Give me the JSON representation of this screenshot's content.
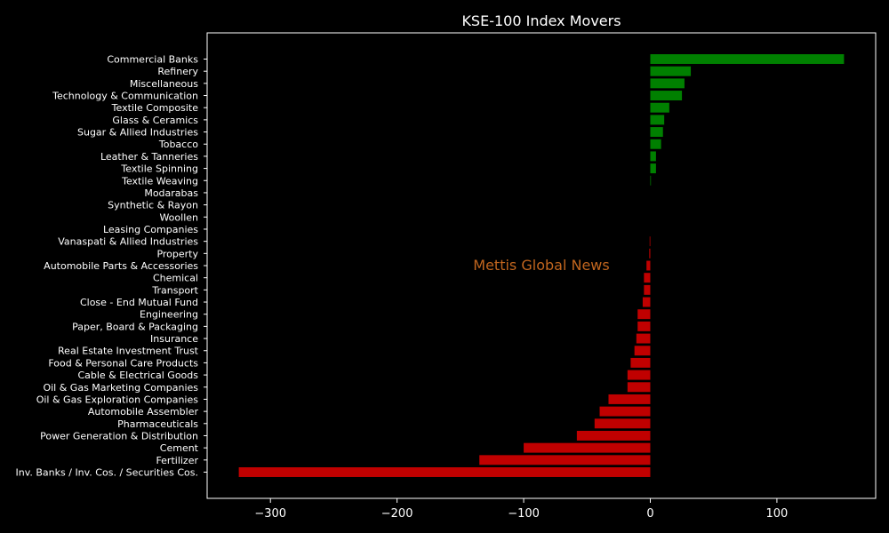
{
  "chart_data": {
    "type": "bar",
    "orientation": "horizontal",
    "title": "KSE-100 Index Movers",
    "watermark": "Mettis Global News",
    "xlim": [
      -350,
      178
    ],
    "xticks": [
      -300,
      -200,
      -100,
      0,
      100
    ],
    "xtick_labels": [
      "−300",
      "−200",
      "−100",
      "0",
      "100"
    ],
    "grid": false,
    "colors": {
      "positive": "#008000",
      "negative": "#c00000",
      "background": "#000000",
      "text": "#ffffff",
      "watermark": "#c0651e"
    },
    "categories": [
      "Commercial Banks",
      "Refinery",
      "Miscellaneous",
      "Technology & Communication",
      "Textile Composite",
      "Glass & Ceramics",
      "Sugar & Allied Industries",
      "Tobacco",
      "Leather & Tanneries",
      "Textile Spinning",
      "Textile Weaving",
      "Modarabas",
      "Synthetic & Rayon",
      "Woollen",
      "Leasing Companies",
      "Vanaspati & Allied Industries",
      "Property",
      "Automobile Parts & Accessories",
      "Chemical",
      "Transport",
      "Close - End Mutual Fund",
      "Engineering",
      "Paper, Board & Packaging",
      "Insurance",
      "Real Estate Investment Trust",
      "Food & Personal Care Products",
      "Cable & Electrical Goods",
      "Oil & Gas Marketing Companies",
      "Oil & Gas Exploration Companies",
      "Automobile Assembler",
      "Pharmaceuticals",
      "Power Generation & Distribution",
      "Cement",
      "Fertilizer",
      "Inv. Banks / Inv. Cos. / Securities Cos."
    ],
    "values": [
      153,
      32,
      27,
      25,
      15,
      11,
      10,
      8.5,
      4.5,
      4.5,
      0.5,
      0,
      0,
      0,
      0,
      -0.5,
      -0.8,
      -3,
      -5,
      -5,
      -6,
      -10,
      -10,
      -11,
      -12.5,
      -15.5,
      -18,
      -18,
      -33,
      -40,
      -44,
      -58,
      -100,
      -135,
      -325
    ]
  }
}
